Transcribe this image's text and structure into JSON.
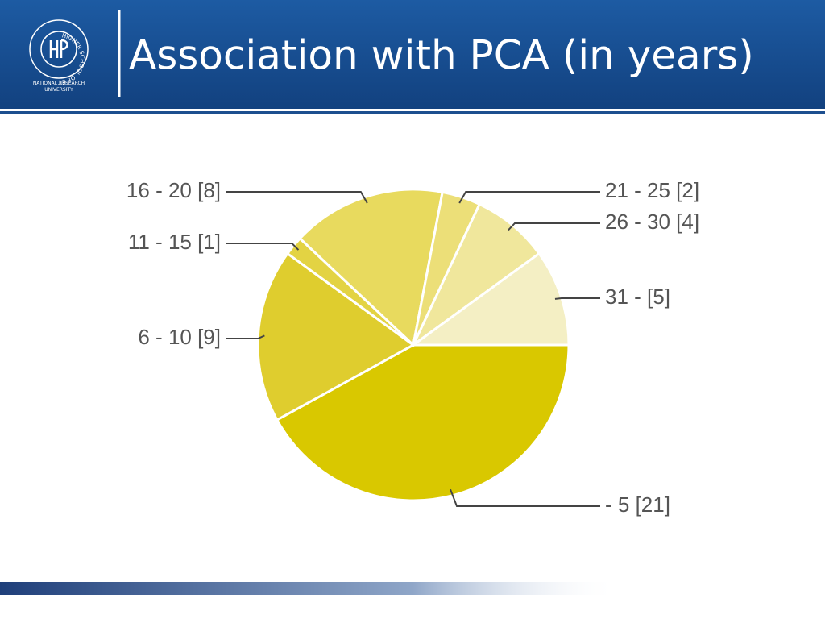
{
  "logo": {
    "ring_text": "HIGHER SCHOOL OF ECONOMICS",
    "caption": "NATIONAL RESEARCH UNIVERSITY"
  },
  "chart_data": {
    "type": "pie",
    "title": "Association with PCA (in years)",
    "categories": [
      "- 5 [21]",
      "6 - 10 [9]",
      "11 - 15 [1]",
      "16 - 20 [8]",
      "21 - 25 [2]",
      "26 - 30 [4]",
      "31 - [5]"
    ],
    "values": [
      21,
      9,
      1,
      8,
      2,
      4,
      5
    ],
    "colors": [
      "#d9c800",
      "#dfcd2e",
      "#e3d343",
      "#e8da5e",
      "#ecdf78",
      "#f0e79c",
      "#f4efc4"
    ]
  }
}
